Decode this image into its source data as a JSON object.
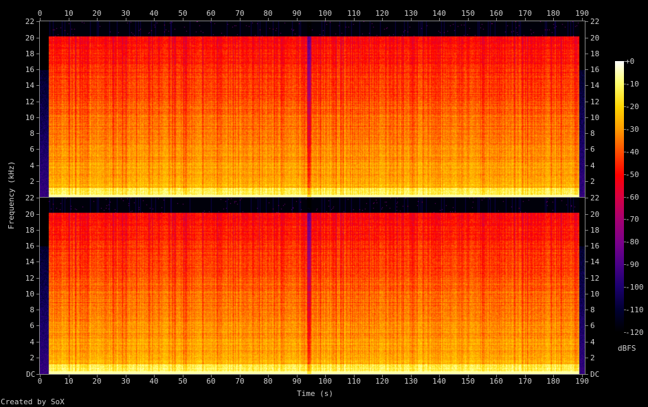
{
  "chart_data": {
    "type": "heatmap",
    "title": "",
    "xlabel": "Time (s)",
    "ylabel": "Frequency (kHz)",
    "xlim": [
      0,
      191
    ],
    "ylim": [
      0,
      22.05
    ],
    "x_ticks": [
      0,
      10,
      20,
      30,
      40,
      50,
      60,
      70,
      80,
      90,
      100,
      110,
      120,
      130,
      140,
      150,
      160,
      170,
      180,
      190
    ],
    "y_ticks": [
      "22",
      "20",
      "18",
      "16",
      "14",
      "12",
      "10",
      "8",
      "6",
      "4",
      "2"
    ],
    "y_bottom_label": "DC",
    "channels": 2,
    "content_start_s": 3,
    "content_end_s": 189,
    "gap_s": [
      93.5,
      95
    ],
    "lowpass_khz": 20.2,
    "colorbar": {
      "label": "dBFS",
      "range": [
        -120,
        0
      ],
      "ticks": [
        "+0",
        "-10",
        "-20",
        "-30",
        "-40",
        "-50",
        "-60",
        "-70",
        "-80",
        "-90",
        "-100",
        "-110",
        "-120"
      ],
      "colormap": [
        [
          -120,
          "#000000"
        ],
        [
          -110,
          "#000030"
        ],
        [
          -100,
          "#1c0070"
        ],
        [
          -90,
          "#4a0088"
        ],
        [
          -80,
          "#7a008a"
        ],
        [
          -70,
          "#a80070"
        ],
        [
          -60,
          "#d80040"
        ],
        [
          -50,
          "#ff0000"
        ],
        [
          -40,
          "#ff5200"
        ],
        [
          -30,
          "#ff9c00"
        ],
        [
          -20,
          "#ffd400"
        ],
        [
          -10,
          "#ffff70"
        ],
        [
          0,
          "#ffffff"
        ]
      ]
    }
  },
  "footer": "Created by SoX"
}
